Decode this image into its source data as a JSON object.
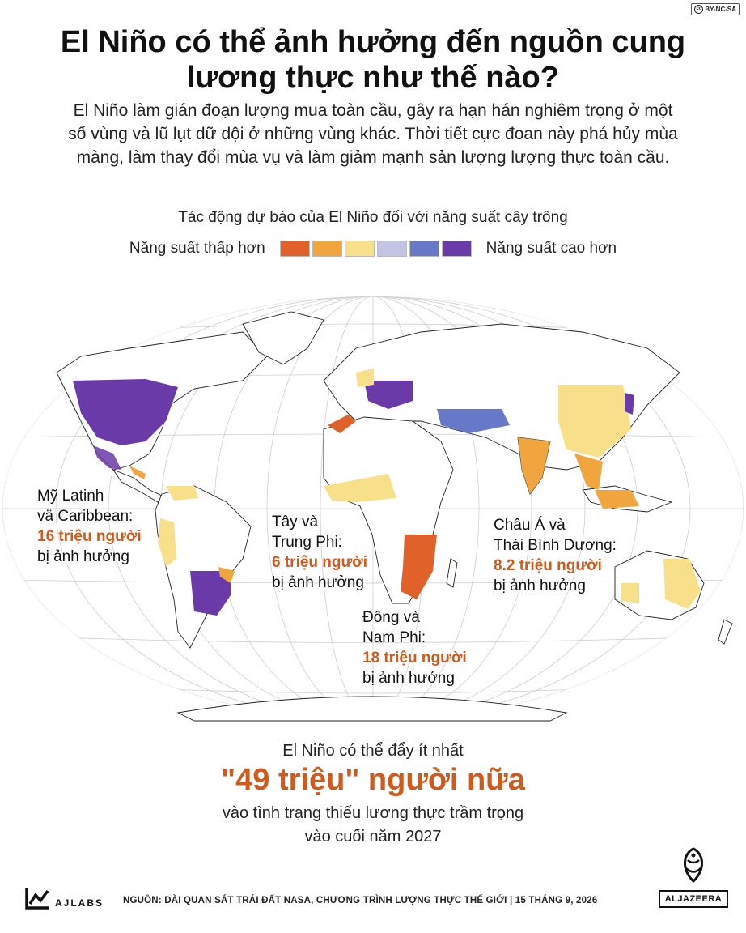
{
  "license": "BY-NC-SA",
  "title_line1": "El Niño có thể ảnh hưởng đến nguồn cung",
  "title_line2": "lương thực như thế nào?",
  "intro_line1": "El Niño làm gián đoạn lượng mua toàn cầu, gây ra hạn hán nghiêm trọng ở một",
  "intro_line2": "số vùng và lũ lụt dữ dội ở những vùng khác. Thời tiết cực đoan này phá hủy mùa",
  "intro_line3": "màng, làm thay đổi mùa vụ và làm giảm mạnh sản lượng lượng thực toàn cầu.",
  "legend": {
    "title": "Tác động dự báo của El Niño đối với năng suất cây trông",
    "low_label": "Năng suất thấp hơn",
    "high_label": "Năng suất cao hơn",
    "colors": [
      "#e0622a",
      "#f0a53f",
      "#f8e08a",
      "#c3c4e4",
      "#6878c8",
      "#6a3aa8"
    ]
  },
  "regions": {
    "latam": {
      "l1": "Mỹ Latinh",
      "l2": "vä Caribbean:",
      "highlight": "16 triệu người",
      "l4": "bị ảnh hưởng"
    },
    "west_africa": {
      "l1": "Tây và",
      "l2": "Trung Phi:",
      "highlight": "6 triệu người",
      "l4": "bị ảnh hưởng"
    },
    "asia": {
      "l1": "Châu Á và",
      "l2": "Thái Bình Dương:",
      "highlight": "8.2 triệu người",
      "l4": "bị ảnh hưởng"
    },
    "east_africa": {
      "l1": "Đông và",
      "l2": "Nam Phi:",
      "highlight": "18 triệu người",
      "l4": "bị ảnh hưởng"
    }
  },
  "bottom": {
    "pre": "El Niño có thể đẩy ít nhất",
    "big": "\"49 triệu\" người nữa",
    "post1": "vào tình trạng thiếu lương thực trầm trọng",
    "post2": "vào cuối năm 2027"
  },
  "footer": {
    "ajlabs": "AJLABS",
    "source": "NGUỒN: DÀI QUAN SÁT TRÁI ĐẤT NASA, CHƯƠNG TRÌNH LƯỢNG THỰC THẾ GIỚI  |  15 THÁNG 9, 2026",
    "aljazeera": "ALJAZEERA"
  }
}
